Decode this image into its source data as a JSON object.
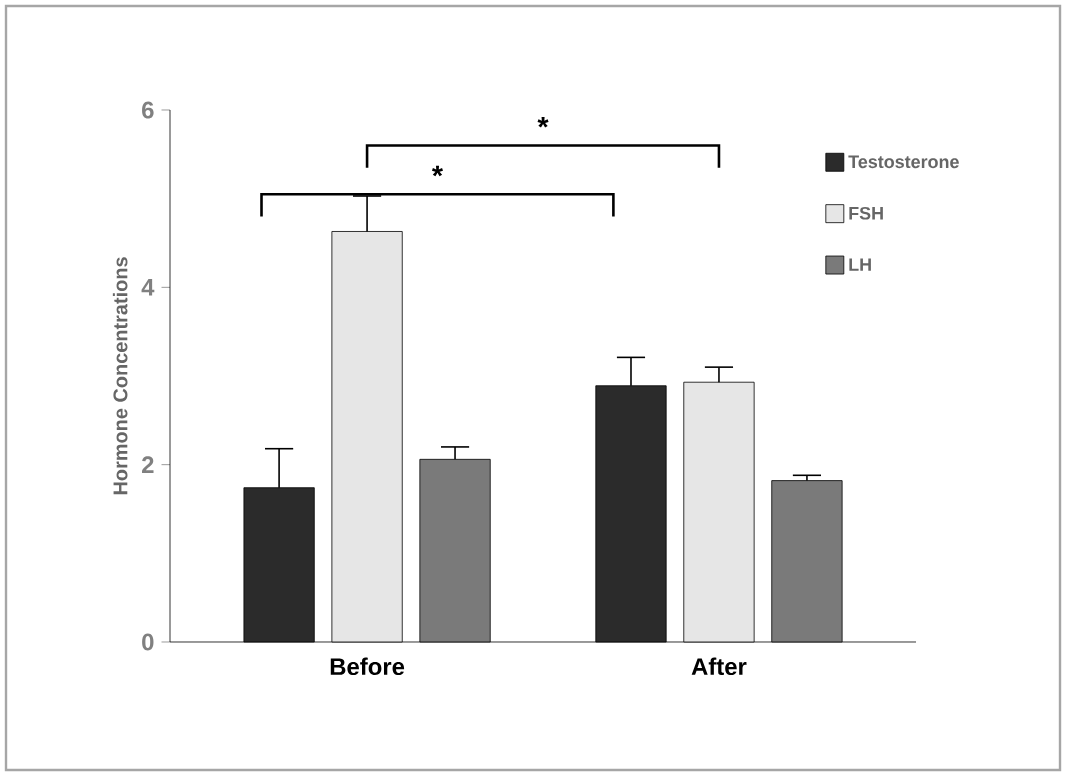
{
  "chart_data": {
    "type": "bar",
    "ylabel": "Hormone Concentrations",
    "categories": [
      "Before",
      "After"
    ],
    "series": [
      {
        "name": "Testosterone",
        "color": "#2b2b2b",
        "values": [
          1.74,
          2.89
        ],
        "errors": [
          [
            1.74,
            2.18
          ],
          [
            2.89,
            3.21
          ]
        ]
      },
      {
        "name": "FSH",
        "color": "#e6e6e6",
        "values": [
          4.63,
          2.93
        ],
        "errors": [
          [
            4.63,
            5.03
          ],
          [
            2.93,
            3.1
          ]
        ]
      },
      {
        "name": "LH",
        "color": "#7a7a7a",
        "values": [
          2.06,
          1.82
        ],
        "errors": [
          [
            2.06,
            2.2
          ],
          [
            1.82,
            1.88
          ]
        ]
      }
    ],
    "ylim": [
      0,
      6
    ],
    "yticks": [
      0,
      2,
      4,
      6
    ],
    "grid": false,
    "legend": "right",
    "annotations": [
      "*",
      "*"
    ]
  }
}
